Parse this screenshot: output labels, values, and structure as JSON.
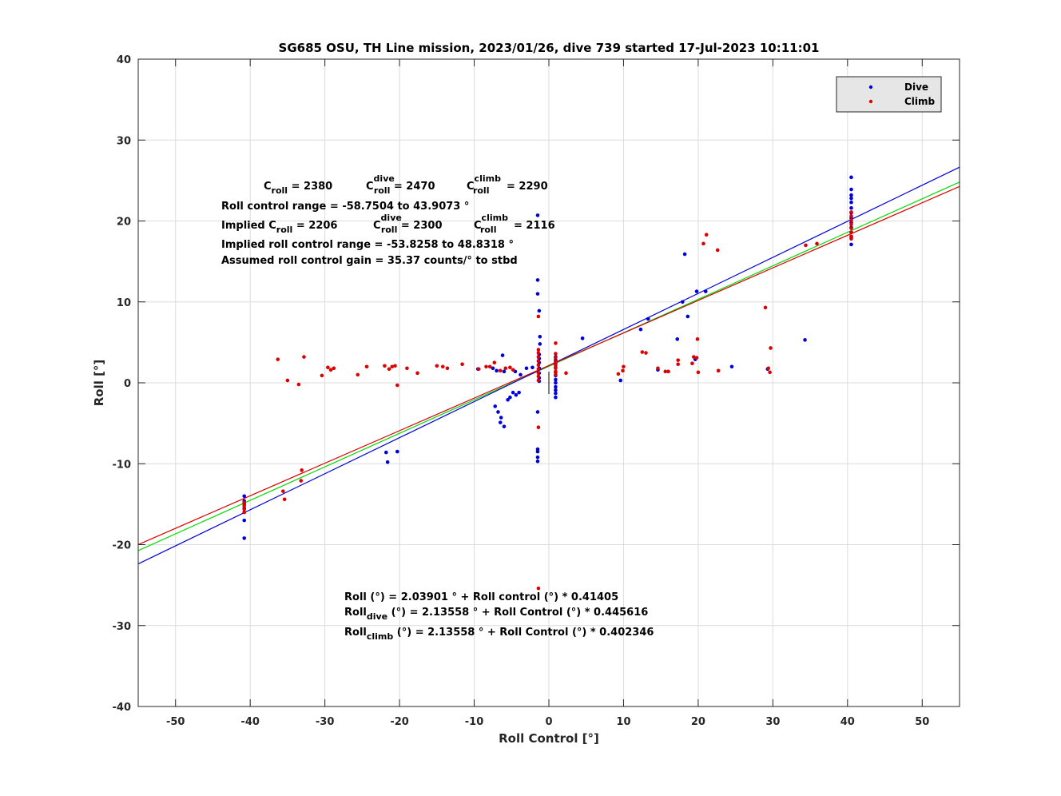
{
  "chart_data": {
    "type": "scatter",
    "title": "SG685 OSU, TH Line mission, 2023/01/26, dive 739 started 17-Jul-2023 10:11:01",
    "xlabel": "Roll Control [°]",
    "ylabel": "Roll [°]",
    "xlim": [
      -55,
      55
    ],
    "ylim": [
      -40,
      40
    ],
    "xticks": [
      -50,
      -40,
      -30,
      -20,
      -10,
      0,
      10,
      20,
      30,
      40,
      50
    ],
    "yticks": [
      -40,
      -30,
      -20,
      -10,
      0,
      10,
      20,
      30,
      40
    ],
    "xtick_labels": [
      "-50",
      "-40",
      "-30",
      "-20",
      "-10",
      "0",
      "10",
      "20",
      "30",
      "40",
      "50"
    ],
    "ytick_labels": [
      "-40",
      "-30",
      "-20",
      "-10",
      "0",
      "10",
      "20",
      "30",
      "40"
    ],
    "grid": true,
    "legend_position": "top-right",
    "colors": {
      "dive": "#0000dd",
      "climb": "#dd0000",
      "fit_all": "#00dd00",
      "fit_dive": "#0000dd",
      "fit_climb": "#dd0000"
    },
    "series": [
      {
        "name": "Dive",
        "color": "#0000dd",
        "points": [
          [
            -40.8,
            -14.0
          ],
          [
            -40.8,
            -14.6
          ],
          [
            -40.8,
            -15.0
          ],
          [
            -40.8,
            -15.5
          ],
          [
            -40.8,
            -16.0
          ],
          [
            -40.8,
            -17.0
          ],
          [
            -40.8,
            -19.2
          ],
          [
            -21.8,
            -8.6
          ],
          [
            -21.6,
            -9.8
          ],
          [
            -20.3,
            -8.5
          ],
          [
            -9.5,
            1.7
          ],
          [
            -7.5,
            1.8
          ],
          [
            -7.0,
            1.5
          ],
          [
            -6.2,
            3.4
          ],
          [
            -6.0,
            1.4
          ],
          [
            -4.5,
            1.4
          ],
          [
            -3.8,
            1.0
          ],
          [
            -3.0,
            1.8
          ],
          [
            -2.2,
            1.9
          ],
          [
            -7.2,
            -2.9
          ],
          [
            -6.8,
            -3.6
          ],
          [
            -6.4,
            -4.3
          ],
          [
            -6.5,
            -4.9
          ],
          [
            -6.0,
            -5.4
          ],
          [
            -5.5,
            -2.1
          ],
          [
            -5.2,
            -1.8
          ],
          [
            -4.8,
            -1.2
          ],
          [
            -4.4,
            -1.5
          ],
          [
            -4.0,
            -1.2
          ],
          [
            -1.5,
            20.7
          ],
          [
            -1.5,
            12.7
          ],
          [
            -1.5,
            11.0
          ],
          [
            -1.3,
            8.9
          ],
          [
            -1.2,
            5.7
          ],
          [
            -1.2,
            4.8
          ],
          [
            -1.3,
            3.5
          ],
          [
            -1.3,
            3.0
          ],
          [
            -1.3,
            2.5
          ],
          [
            -1.3,
            1.8
          ],
          [
            -1.3,
            1.2
          ],
          [
            -1.3,
            0.6
          ],
          [
            -1.3,
            0.2
          ],
          [
            -1.5,
            -3.6
          ],
          [
            -1.5,
            -8.2
          ],
          [
            -1.5,
            -8.5
          ],
          [
            -1.5,
            -9.2
          ],
          [
            -1.5,
            -9.7
          ],
          [
            0.9,
            3.2
          ],
          [
            0.9,
            2.8
          ],
          [
            0.9,
            2.4
          ],
          [
            0.9,
            1.9
          ],
          [
            0.9,
            1.3
          ],
          [
            0.9,
            0.9
          ],
          [
            0.9,
            0.4
          ],
          [
            0.9,
            0.0
          ],
          [
            0.9,
            -0.5
          ],
          [
            0.9,
            -0.9
          ],
          [
            0.9,
            -1.3
          ],
          [
            0.9,
            -1.8
          ],
          [
            4.5,
            5.5
          ],
          [
            9.6,
            0.3
          ],
          [
            12.3,
            6.6
          ],
          [
            13.3,
            7.9
          ],
          [
            14.6,
            1.6
          ],
          [
            17.2,
            5.4
          ],
          [
            17.9,
            10.0
          ],
          [
            18.2,
            15.9
          ],
          [
            18.6,
            8.2
          ],
          [
            19.6,
            2.9
          ],
          [
            19.8,
            11.3
          ],
          [
            21.0,
            11.3
          ],
          [
            24.5,
            2.0
          ],
          [
            29.3,
            1.7
          ],
          [
            34.3,
            5.3
          ],
          [
            40.5,
            25.4
          ],
          [
            40.5,
            23.9
          ],
          [
            40.5,
            23.2
          ],
          [
            40.5,
            22.8
          ],
          [
            40.5,
            22.3
          ],
          [
            40.5,
            21.6
          ],
          [
            40.5,
            21.0
          ],
          [
            40.5,
            20.4
          ],
          [
            40.5,
            19.8
          ],
          [
            40.5,
            19.2
          ],
          [
            40.5,
            18.6
          ],
          [
            40.5,
            18.0
          ],
          [
            40.5,
            17.1
          ]
        ]
      },
      {
        "name": "Climb",
        "color": "#dd0000",
        "points": [
          [
            -40.8,
            -14.8
          ],
          [
            -40.8,
            -15.2
          ],
          [
            -40.8,
            -15.6
          ],
          [
            -40.8,
            -16.0
          ],
          [
            -35.6,
            -13.4
          ],
          [
            -35.4,
            -14.4
          ],
          [
            -33.1,
            -10.8
          ],
          [
            -33.2,
            -12.1
          ],
          [
            -36.3,
            2.9
          ],
          [
            -35.0,
            0.3
          ],
          [
            -33.5,
            -0.2
          ],
          [
            -32.8,
            3.2
          ],
          [
            -30.4,
            0.9
          ],
          [
            -29.6,
            1.9
          ],
          [
            -29.2,
            1.6
          ],
          [
            -28.8,
            1.8
          ],
          [
            -25.6,
            1.0
          ],
          [
            -24.4,
            2.0
          ],
          [
            -22.0,
            2.1
          ],
          [
            -21.4,
            1.7
          ],
          [
            -21.0,
            2.0
          ],
          [
            -20.6,
            2.1
          ],
          [
            -20.3,
            -0.3
          ],
          [
            -19.0,
            1.8
          ],
          [
            -17.6,
            1.2
          ],
          [
            -15.0,
            2.1
          ],
          [
            -14.2,
            2.0
          ],
          [
            -13.6,
            1.8
          ],
          [
            -11.6,
            2.3
          ],
          [
            -9.4,
            1.7
          ],
          [
            -8.4,
            2.0
          ],
          [
            -7.9,
            2.0
          ],
          [
            -7.3,
            2.5
          ],
          [
            -6.5,
            1.5
          ],
          [
            -5.8,
            1.8
          ],
          [
            -5.2,
            1.9
          ],
          [
            -4.8,
            1.6
          ],
          [
            -1.4,
            8.2
          ],
          [
            -1.4,
            4.1
          ],
          [
            -1.4,
            3.7
          ],
          [
            -1.4,
            3.2
          ],
          [
            -1.4,
            2.7
          ],
          [
            -1.4,
            2.2
          ],
          [
            -1.4,
            1.7
          ],
          [
            -1.4,
            1.2
          ],
          [
            -1.4,
            0.8
          ],
          [
            -1.4,
            0.3
          ],
          [
            -1.4,
            -5.5
          ],
          [
            -1.4,
            -25.4
          ],
          [
            0.9,
            4.9
          ],
          [
            0.9,
            3.6
          ],
          [
            0.9,
            3.1
          ],
          [
            0.9,
            2.6
          ],
          [
            0.9,
            2.2
          ],
          [
            0.9,
            1.8
          ],
          [
            0.9,
            1.4
          ],
          [
            0.9,
            1.0
          ],
          [
            2.3,
            1.2
          ],
          [
            9.3,
            1.1
          ],
          [
            9.9,
            1.5
          ],
          [
            10.0,
            2.0
          ],
          [
            12.5,
            3.8
          ],
          [
            13.0,
            3.7
          ],
          [
            14.6,
            1.8
          ],
          [
            15.6,
            1.4
          ],
          [
            16.0,
            1.4
          ],
          [
            17.3,
            2.8
          ],
          [
            17.3,
            2.3
          ],
          [
            19.2,
            2.4
          ],
          [
            19.4,
            3.2
          ],
          [
            19.8,
            3.1
          ],
          [
            19.9,
            5.4
          ],
          [
            20.0,
            1.3
          ],
          [
            20.7,
            17.2
          ],
          [
            21.1,
            18.3
          ],
          [
            22.6,
            16.4
          ],
          [
            22.7,
            1.5
          ],
          [
            29.0,
            9.3
          ],
          [
            29.4,
            1.8
          ],
          [
            29.6,
            1.3
          ],
          [
            29.7,
            4.3
          ],
          [
            34.4,
            17.0
          ],
          [
            35.9,
            17.2
          ],
          [
            40.5,
            21.1
          ],
          [
            40.5,
            20.6
          ],
          [
            40.5,
            20.1
          ],
          [
            40.5,
            19.6
          ],
          [
            40.5,
            19.1
          ],
          [
            40.5,
            18.6
          ],
          [
            40.5,
            18.1
          ],
          [
            40.5,
            17.8
          ]
        ]
      }
    ],
    "fit_lines": [
      {
        "label": "fit_all",
        "intercept": 2.03901,
        "slope": 0.41405,
        "color": "#00dd00"
      },
      {
        "label": "fit_dive",
        "intercept": 2.13558,
        "slope": 0.445616,
        "color": "#0000dd"
      },
      {
        "label": "fit_climb",
        "intercept": 2.13558,
        "slope": 0.402346,
        "color": "#dd0000"
      }
    ],
    "center_mark_x": 0.0,
    "legend": [
      {
        "label": "Dive",
        "color": "#0000dd"
      },
      {
        "label": "Climb",
        "color": "#dd0000"
      }
    ],
    "annotations": {
      "line1": [
        {
          "base": "C",
          "sub": "roll",
          "sup": "",
          "rest": " = 2380"
        },
        {
          "base": "C",
          "sub": "roll",
          "sup": "dive",
          "rest": " = 2470"
        },
        {
          "base": "C",
          "sub": "roll",
          "sup": "climb",
          "rest": " = 2290"
        }
      ],
      "line2": "Roll control range = -58.7504 to 43.9073 °",
      "line3": [
        {
          "base": "Implied C",
          "sub": "roll",
          "sup": "",
          "rest": " = 2206"
        },
        {
          "base": "C",
          "sub": "roll",
          "sup": "dive",
          "rest": " = 2300"
        },
        {
          "base": "C",
          "sub": "roll",
          "sup": "climb",
          "rest": " = 2116"
        }
      ],
      "line4": "Implied roll control range = -53.8258 to 48.8318 °",
      "line5": "Assumed roll control gain = 35.37 counts/° to stbd",
      "eq1": "Roll (°) = 2.03901 ° + Roll control (°) * 0.41405",
      "eq2": {
        "base": "Roll",
        "sub": "dive",
        "rest": " (°) = 2.13558 ° + Roll Control (°) * 0.445616"
      },
      "eq3": {
        "base": "Roll",
        "sub": "climb",
        "rest": " (°) = 2.13558 ° + Roll Control (°) * 0.402346"
      }
    }
  }
}
